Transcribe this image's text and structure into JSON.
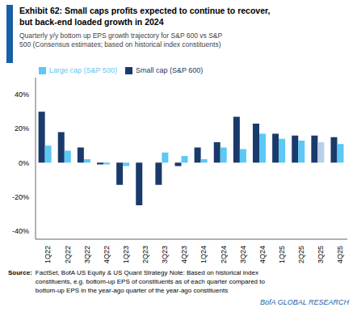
{
  "chart_data": {
    "type": "bar",
    "title": "Exhibit 62: Small caps profits expected to continue to recover,\nbut back-end loaded growth in 2024",
    "subtitle": "Quarterly y/y bottom up EPS growth trajectory for S&P 600 vs S&P\n500 (Consensus estimates; based on historical index constituents)",
    "categories": [
      "1Q22",
      "2Q22",
      "3Q22",
      "4Q22",
      "1Q23",
      "2Q23",
      "3Q23",
      "4Q23",
      "1Q24",
      "2Q24",
      "3Q24",
      "4Q24",
      "1Q25",
      "2Q25",
      "3Q25",
      "4Q25"
    ],
    "series": [
      {
        "name": "Small cap (S&P 600)",
        "color": "#1a3a6b",
        "values": [
          30,
          18,
          9,
          -1,
          -13,
          -25,
          -13,
          -2,
          9,
          12,
          27,
          23,
          17,
          16,
          16,
          15
        ]
      },
      {
        "name": "Large cap (S&P 500)",
        "color": "#5bc8f5",
        "colors": [
          "#5bc8f5",
          "#5bc8f5",
          "#5bc8f5",
          "#5bc8f5",
          "#5bc8f5",
          "#5bc8f5",
          "#5bc8f5",
          "#5bc8f5",
          "#5bc8f5",
          "#5bc8f5",
          "#5bc8f5",
          "#5bc8f5",
          "#5bc8f5",
          "#5bc8f5",
          "#b8cfe8",
          "#5bc8f5"
        ],
        "values": [
          10,
          7,
          2,
          -1,
          -2,
          0,
          6,
          4,
          2,
          9,
          8,
          17,
          14,
          13,
          12,
          11
        ]
      }
    ],
    "ylim": [
      -45,
      50
    ],
    "yticks": [
      {
        "value": -40,
        "label": "-40%"
      },
      {
        "value": -20,
        "label": "-20%"
      },
      {
        "value": 0,
        "label": "0%"
      },
      {
        "value": 20,
        "label": "20%"
      },
      {
        "value": 40,
        "label": "40%"
      }
    ],
    "grid": false,
    "legend": "top",
    "annotations": [
      "Source:",
      "FactSet, BofA US Equity & US Quant Strategy Note: Based on historical index\nconstituents, e.g. bottom-up EPS of constituents as of each quarter compared to\nbottom-up EPS in the year-ago quarter of the year-ago constituents",
      "BofA GLOBAL RESEARCH"
    ]
  }
}
